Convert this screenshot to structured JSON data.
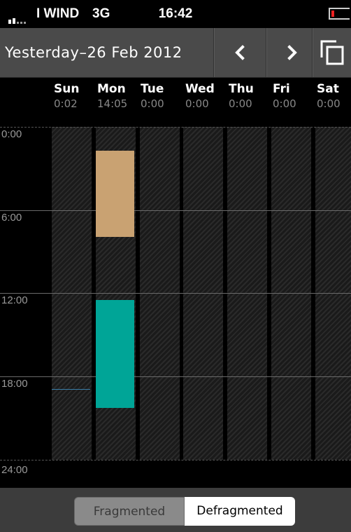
{
  "status_bar": {
    "carrier": "I WIND",
    "network": "3G",
    "time": "16:42",
    "battery_color": "#e22222"
  },
  "nav": {
    "title": "Yesterday–26 Feb 2012",
    "prev_icon": "chevron-left-icon",
    "next_icon": "chevron-right-icon",
    "copy_icon": "copy-icon"
  },
  "days": [
    {
      "name": "Sun",
      "total": "0:02"
    },
    {
      "name": "Mon",
      "total": "14:05"
    },
    {
      "name": "Tue",
      "total": "0:00"
    },
    {
      "name": "Wed",
      "total": "0:00"
    },
    {
      "name": "Thu",
      "total": "0:00"
    },
    {
      "name": "Fri",
      "total": "0:00"
    },
    {
      "name": "Sat",
      "total": "0:00"
    }
  ],
  "time_labels": [
    "0:00",
    "6:00",
    "12:00",
    "18:00",
    "24:00"
  ],
  "entries": [
    {
      "day": "Mon",
      "start_hour": 1.7,
      "end_hour": 7.9,
      "color": "#c9a272"
    },
    {
      "day": "Mon",
      "start_hour": 12.5,
      "end_hour": 20.3,
      "color": "#00a597"
    }
  ],
  "segmented": {
    "fragmented": "Fragmented",
    "defragmented": "Defragmented",
    "selected": "Defragmented"
  }
}
